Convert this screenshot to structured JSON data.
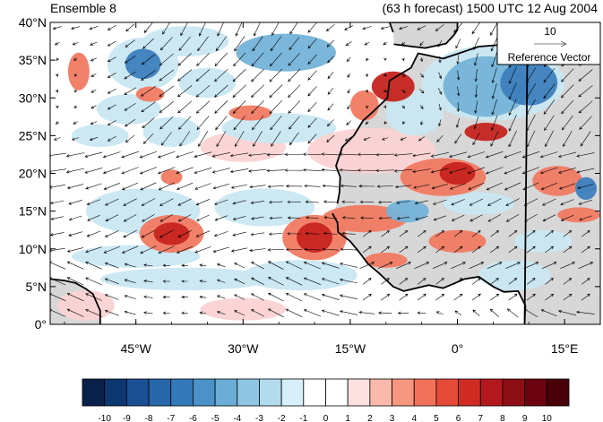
{
  "header": {
    "left_title": "Ensemble 8",
    "right_title": "(63 h forecast) 1500 UTC 12 Aug 2004"
  },
  "axes": {
    "lat_ticks": [
      {
        "value": 40,
        "label": "40°N"
      },
      {
        "value": 35,
        "label": "35°N"
      },
      {
        "value": 30,
        "label": "30°N"
      },
      {
        "value": 25,
        "label": "25°N"
      },
      {
        "value": 20,
        "label": "20°N"
      },
      {
        "value": 15,
        "label": "15°N"
      },
      {
        "value": 10,
        "label": "10°N"
      },
      {
        "value": 5,
        "label": "5°N"
      },
      {
        "value": 0,
        "label": "0°"
      }
    ],
    "lon_ticks": [
      {
        "value": -45,
        "label": "45°W"
      },
      {
        "value": -30,
        "label": "30°W"
      },
      {
        "value": -15,
        "label": "15°W"
      },
      {
        "value": 0,
        "label": "0°"
      },
      {
        "value": 15,
        "label": "15°E"
      }
    ],
    "lon_range": [
      -57,
      20
    ],
    "lat_range": [
      0,
      40
    ]
  },
  "reference_vector": {
    "magnitude": "10",
    "label": "Reference Vector"
  },
  "colorbar": {
    "labels": [
      "-10",
      "-9",
      "-8",
      "-7",
      "-6",
      "-5",
      "-4",
      "-3",
      "-2",
      "-1",
      "0",
      "1",
      "2",
      "3",
      "4",
      "5",
      "6",
      "7",
      "8",
      "9",
      "10"
    ],
    "colors": [
      "#08204a",
      "#0d3770",
      "#1b4f94",
      "#2766a8",
      "#3479b9",
      "#4a92c7",
      "#6aaed7",
      "#8fc6e3",
      "#b2dcee",
      "#d6eff8",
      "#ffffff",
      "#ffffff",
      "#fde0e0",
      "#f9b9ab",
      "#f6967f",
      "#f1715b",
      "#e44a36",
      "#cf2b22",
      "#b3181d",
      "#8e0e16",
      "#6b0410",
      "#4a0008"
    ]
  },
  "colors": {
    "land": "#d7d7d7",
    "coast": "#000000",
    "neg_light": "#c9e7f2",
    "neg_mid": "#74b3d8",
    "neg_dark": "#3d7fbd",
    "pos_light": "#fbd3d3",
    "pos_mid": "#f17a62",
    "pos_dark": "#c6241f"
  },
  "field_blobs": [
    {
      "lon": -44,
      "lat": 34.5,
      "rx": 2.5,
      "ry": 2.0,
      "v": -5
    },
    {
      "lon": -44,
      "lat": 34.5,
      "rx": 5.0,
      "ry": 3.5,
      "v": -2
    },
    {
      "lon": -53,
      "lat": 33.5,
      "rx": 1.5,
      "ry": 2.5,
      "v": 5
    },
    {
      "lon": -46,
      "lat": 28.5,
      "rx": 4.5,
      "ry": 2.0,
      "v": -2
    },
    {
      "lon": -43,
      "lat": 30.5,
      "rx": 2.0,
      "ry": 1.0,
      "v": 5
    },
    {
      "lon": -38,
      "lat": 37.5,
      "rx": 6.0,
      "ry": 2.0,
      "v": -2
    },
    {
      "lon": -24,
      "lat": 36.0,
      "rx": 7.0,
      "ry": 2.5,
      "v": -3
    },
    {
      "lon": -35,
      "lat": 32.0,
      "rx": 4.0,
      "ry": 2.0,
      "v": -2
    },
    {
      "lon": -29,
      "lat": 28.0,
      "rx": 3.0,
      "ry": 1.0,
      "v": 3
    },
    {
      "lon": -25,
      "lat": 26.0,
      "rx": 8.0,
      "ry": 2.0,
      "v": -2
    },
    {
      "lon": -40,
      "lat": 25.5,
      "rx": 4.0,
      "ry": 2.0,
      "v": -2
    },
    {
      "lon": -50,
      "lat": 25.0,
      "rx": 4.0,
      "ry": 1.5,
      "v": -2
    },
    {
      "lon": -12,
      "lat": 23.0,
      "rx": 9.0,
      "ry": 3.0,
      "v": 2
    },
    {
      "lon": -30,
      "lat": 23.5,
      "rx": 6.0,
      "ry": 2.0,
      "v": 1
    },
    {
      "lon": -40,
      "lat": 19.5,
      "rx": 1.5,
      "ry": 1.0,
      "v": 5
    },
    {
      "lon": -27,
      "lat": 15.5,
      "rx": 7.0,
      "ry": 2.5,
      "v": -2
    },
    {
      "lon": -44,
      "lat": 15.0,
      "rx": 8.0,
      "ry": 3.0,
      "v": -1
    },
    {
      "lon": -40,
      "lat": 12.0,
      "rx": 2.5,
      "ry": 1.5,
      "v": 7
    },
    {
      "lon": -40,
      "lat": 12.0,
      "rx": 4.5,
      "ry": 2.5,
      "v": 3
    },
    {
      "lon": -20,
      "lat": 11.5,
      "rx": 2.5,
      "ry": 2.0,
      "v": 8
    },
    {
      "lon": -20,
      "lat": 11.5,
      "rx": 4.5,
      "ry": 3.0,
      "v": 4
    },
    {
      "lon": -13,
      "lat": 14.0,
      "rx": 6.0,
      "ry": 1.8,
      "v": 3
    },
    {
      "lon": -7,
      "lat": 15.0,
      "rx": 3.0,
      "ry": 1.5,
      "v": -4
    },
    {
      "lon": 0,
      "lat": 20.0,
      "rx": 2.5,
      "ry": 1.5,
      "v": 7
    },
    {
      "lon": -2,
      "lat": 19.5,
      "rx": 6.0,
      "ry": 2.5,
      "v": 3
    },
    {
      "lon": 3,
      "lat": 16.0,
      "rx": 5.0,
      "ry": 1.5,
      "v": -2
    },
    {
      "lon": 14,
      "lat": 19.0,
      "rx": 3.5,
      "ry": 2.0,
      "v": 5
    },
    {
      "lon": 18,
      "lat": 18.0,
      "rx": 1.5,
      "ry": 1.5,
      "v": -5
    },
    {
      "lon": 17,
      "lat": 14.5,
      "rx": 3.0,
      "ry": 1.0,
      "v": 4
    },
    {
      "lon": 4,
      "lat": 31.5,
      "rx": 6.0,
      "ry": 4.0,
      "v": -4
    },
    {
      "lon": 10,
      "lat": 32.0,
      "rx": 4.0,
      "ry": 3.0,
      "v": -6
    },
    {
      "lon": 5,
      "lat": 32.0,
      "rx": 10.0,
      "ry": 5.0,
      "v": -2
    },
    {
      "lon": -9,
      "lat": 31.5,
      "rx": 3.0,
      "ry": 2.0,
      "v": 6
    },
    {
      "lon": -13,
      "lat": 29.0,
      "rx": 2.0,
      "ry": 2.0,
      "v": 5
    },
    {
      "lon": 4,
      "lat": 25.5,
      "rx": 3.0,
      "ry": 1.2,
      "v": 6
    },
    {
      "lon": -6,
      "lat": 28.0,
      "rx": 4.0,
      "ry": 3.0,
      "v": -2
    },
    {
      "lon": -45,
      "lat": 9.0,
      "rx": 9.0,
      "ry": 1.5,
      "v": -2
    },
    {
      "lon": -38,
      "lat": 6.0,
      "rx": 12.0,
      "ry": 1.5,
      "v": -1
    },
    {
      "lon": -22,
      "lat": 6.5,
      "rx": 8.0,
      "ry": 2.0,
      "v": -1
    },
    {
      "lon": -10,
      "lat": 8.5,
      "rx": 3.0,
      "ry": 1.0,
      "v": 4
    },
    {
      "lon": 0,
      "lat": 11.0,
      "rx": 4.0,
      "ry": 1.5,
      "v": 3
    },
    {
      "lon": 12,
      "lat": 11.0,
      "rx": 4.0,
      "ry": 1.5,
      "v": -2
    },
    {
      "lon": 8,
      "lat": 6.5,
      "rx": 5.0,
      "ry": 2.0,
      "v": -1
    },
    {
      "lon": -52,
      "lat": 2.5,
      "rx": 4.0,
      "ry": 2.0,
      "v": 2
    },
    {
      "lon": -30,
      "lat": 2.0,
      "rx": 6.0,
      "ry": 1.5,
      "v": 1
    }
  ]
}
